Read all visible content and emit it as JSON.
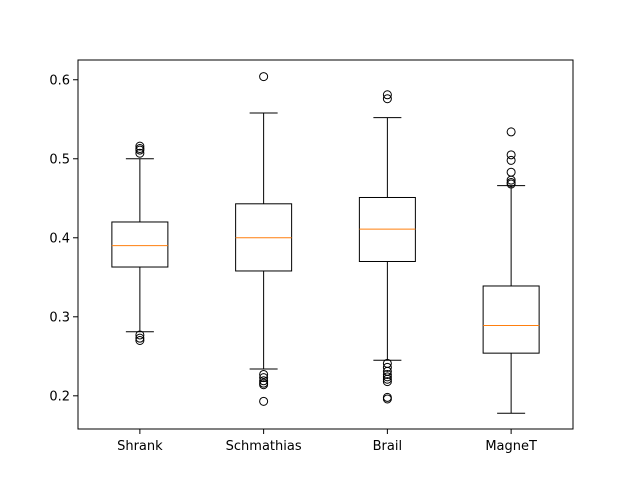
{
  "chart_data": {
    "type": "box",
    "title": "",
    "xlabel": "",
    "ylabel": "",
    "ylim": [
      0.158,
      0.625
    ],
    "yticks": [
      0.2,
      0.3,
      0.4,
      0.5,
      0.6
    ],
    "ytick_labels": [
      "0.2",
      "0.3",
      "0.4",
      "0.5",
      "0.6"
    ],
    "grid": false,
    "legend": "none",
    "colors": {
      "box": "#000000",
      "median": "#ff7f0e",
      "frame": "#000000"
    },
    "boxes": [
      {
        "category": "Shrank",
        "whisker_low": 0.281,
        "q1": 0.363,
        "median": 0.39,
        "q3": 0.42,
        "whisker_high": 0.5,
        "outliers": [
          0.516,
          0.513,
          0.511,
          0.507,
          0.277,
          0.273,
          0.27
        ]
      },
      {
        "category": "Schmathias",
        "whisker_low": 0.234,
        "q1": 0.358,
        "median": 0.4,
        "q3": 0.443,
        "whisker_high": 0.558,
        "outliers": [
          0.604,
          0.227,
          0.223,
          0.219,
          0.216,
          0.214,
          0.193
        ]
      },
      {
        "category": "Brail",
        "whisker_low": 0.245,
        "q1": 0.37,
        "median": 0.411,
        "q3": 0.451,
        "whisker_high": 0.552,
        "outliers": [
          0.581,
          0.576,
          0.241,
          0.236,
          0.231,
          0.227,
          0.224,
          0.221,
          0.218,
          0.198,
          0.196
        ]
      },
      {
        "category": "MagneT",
        "whisker_low": 0.178,
        "q1": 0.254,
        "median": 0.289,
        "q3": 0.339,
        "whisker_high": 0.466,
        "outliers": [
          0.534,
          0.505,
          0.498,
          0.483,
          0.473,
          0.47,
          0.468
        ]
      }
    ]
  }
}
